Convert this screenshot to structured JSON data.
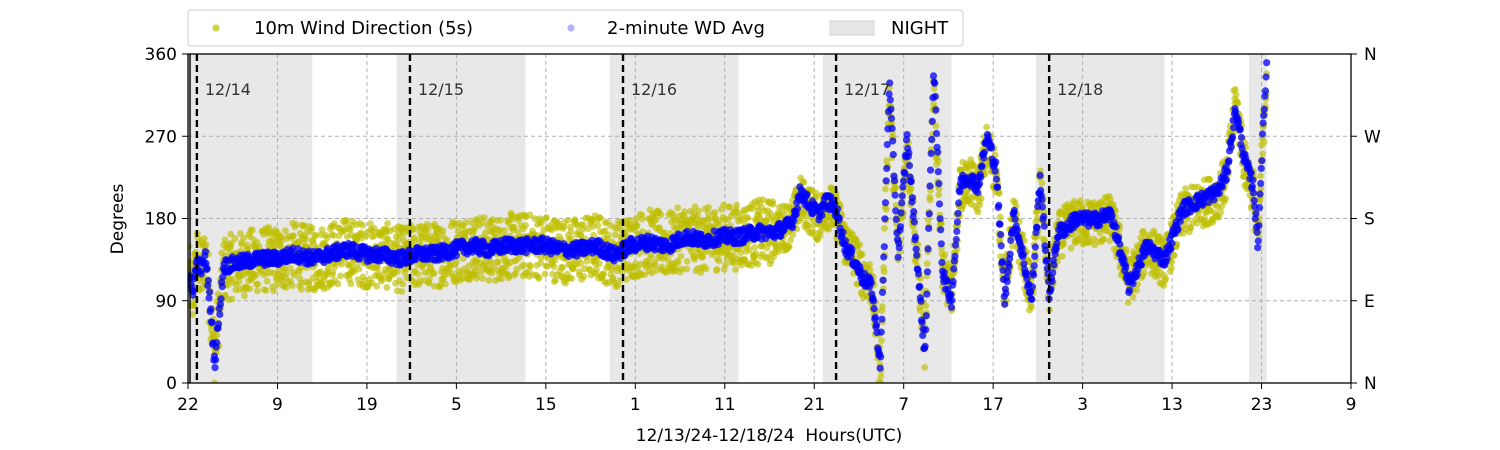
{
  "chart_data": {
    "type": "scatter",
    "title": "",
    "xlabel": "12/13/24-12/18/24  Hours(UTC)",
    "ylabel": "Degrees",
    "xlim": [
      0,
      131
    ],
    "ylim": [
      0,
      360
    ],
    "x_tick_labels": [
      "22",
      "9",
      "19",
      "5",
      "15",
      "1",
      "11",
      "21",
      "7",
      "17",
      "3",
      "13",
      "23",
      "9"
    ],
    "y_ticks": [
      0,
      90,
      180,
      270,
      360
    ],
    "y_tick_labels": [
      "0",
      "90",
      "180",
      "270",
      "360"
    ],
    "right_axis_labels": [
      "N",
      "E",
      "S",
      "W",
      "N"
    ],
    "grid": true,
    "legend_position": "top-center",
    "legend": [
      "10m Wind Direction (5s)",
      "2-minute WD Avg",
      "NIGHT"
    ],
    "colors": {
      "raw": "#bfbf00",
      "avg": "#0000ff",
      "night": "#e6e6e6",
      "day_line": "#000000",
      "grid": "#b0b0b0"
    },
    "day_markers": [
      {
        "label": "12/14",
        "x": 1
      },
      {
        "label": "12/15",
        "x": 25
      },
      {
        "label": "12/16",
        "x": 49
      },
      {
        "label": "12/17",
        "x": 73
      },
      {
        "label": "12/18",
        "x": 97
      }
    ],
    "night_periods": [
      [
        0,
        14
      ],
      [
        23.5,
        38
      ],
      [
        47.5,
        62
      ],
      [
        71.5,
        86
      ],
      [
        95.5,
        110
      ],
      [
        119.5,
        121.5
      ]
    ],
    "series": [
      {
        "name": "10m Wind Direction (5s)",
        "x": [
          0,
          0.5,
          1,
          1.5,
          2,
          2.5,
          3,
          4,
          6,
          8,
          10,
          12,
          14,
          16,
          18,
          20,
          22,
          24,
          26,
          28,
          30,
          32,
          34,
          36,
          38,
          40,
          42,
          44,
          46,
          48,
          50,
          52,
          54,
          56,
          58,
          60,
          62,
          64,
          66,
          68,
          69,
          70,
          71,
          72,
          73,
          74,
          75,
          76,
          77,
          78,
          79,
          80,
          81,
          82,
          83,
          84,
          85,
          86,
          87,
          88,
          89,
          90,
          91,
          92,
          93,
          94,
          95,
          96,
          97,
          98,
          99,
          100,
          102,
          104,
          106,
          108,
          110,
          112,
          114,
          116,
          117,
          118,
          119,
          120,
          120.5,
          121,
          121.5
        ],
        "values": [
          120,
          95,
          135,
          120,
          140,
          90,
          30,
          125,
          130,
          135,
          135,
          140,
          135,
          140,
          145,
          140,
          140,
          135,
          140,
          140,
          145,
          150,
          145,
          150,
          150,
          150,
          145,
          145,
          150,
          140,
          150,
          155,
          150,
          160,
          155,
          160,
          160,
          165,
          165,
          175,
          200,
          190,
          180,
          195,
          185,
          155,
          140,
          120,
          110,
          10,
          320,
          140,
          260,
          150,
          40,
          330,
          120,
          100,
          215,
          220,
          210,
          260,
          230,
          100,
          180,
          140,
          95,
          220,
          100,
          160,
          170,
          175,
          175,
          180,
          110,
          150,
          130,
          185,
          195,
          205,
          225,
          310,
          240,
          210,
          155,
          250,
          340
        ]
      },
      {
        "name": "2-minute WD Avg",
        "x": [
          0,
          0.5,
          1,
          1.5,
          2,
          2.5,
          3,
          4,
          6,
          8,
          10,
          12,
          14,
          16,
          18,
          20,
          22,
          24,
          26,
          28,
          30,
          32,
          34,
          36,
          38,
          40,
          42,
          44,
          46,
          48,
          50,
          52,
          54,
          56,
          58,
          60,
          62,
          64,
          66,
          68,
          69,
          70,
          71,
          72,
          73,
          74,
          75,
          76,
          77,
          78,
          79,
          80,
          81,
          82,
          83,
          84,
          85,
          86,
          87,
          88,
          89,
          90,
          91,
          92,
          93,
          94,
          95,
          96,
          97,
          98,
          99,
          100,
          102,
          104,
          106,
          108,
          110,
          112,
          114,
          116,
          117,
          118,
          119,
          120,
          120.5,
          121,
          121.5
        ],
        "values": [
          118,
          100,
          132,
          125,
          138,
          85,
          20,
          128,
          132,
          136,
          136,
          141,
          136,
          141,
          146,
          141,
          140,
          136,
          141,
          141,
          146,
          150,
          146,
          151,
          150,
          151,
          146,
          146,
          150,
          140,
          151,
          154,
          150,
          160,
          156,
          160,
          160,
          165,
          165,
          174,
          210,
          195,
          185,
          200,
          190,
          150,
          135,
          115,
          105,
          20,
          330,
          140,
          270,
          150,
          30,
          345,
          120,
          90,
          220,
          225,
          215,
          270,
          235,
          90,
          185,
          140,
          90,
          225,
          95,
          165,
          170,
          180,
          178,
          185,
          105,
          150,
          135,
          190,
          200,
          210,
          230,
          300,
          245,
          215,
          150,
          260,
          350
        ]
      }
    ]
  }
}
